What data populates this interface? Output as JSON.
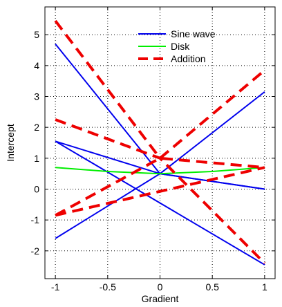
{
  "chart_data": {
    "type": "line",
    "title": "",
    "xlabel": "Gradient",
    "ylabel": "Intercept",
    "xlim": [
      -1.1,
      1.1
    ],
    "ylim": [
      -2.9,
      5.9
    ],
    "xticks": [
      -1,
      -0.5,
      0,
      0.5,
      1
    ],
    "xtick_labels": [
      "-1",
      "-0.5",
      "0",
      "0.5",
      "1"
    ],
    "yticks": [
      -2,
      -1,
      0,
      1,
      2,
      3,
      4,
      5
    ],
    "ytick_labels": [
      "-2",
      "-1",
      "0",
      "1",
      "2",
      "3",
      "4",
      "5"
    ],
    "grid": true,
    "legend_position": "top-right",
    "series": [
      {
        "name": "Sine wave",
        "color": "#0000ee",
        "style": "solid",
        "lines": [
          {
            "x": [
              -1,
              0,
              1
            ],
            "y": [
              4.7,
              0.5,
              3.15
            ]
          },
          {
            "x": [
              -1,
              0,
              1
            ],
            "y": [
              1.55,
              0.5,
              0.0
            ]
          },
          {
            "x": [
              -1,
              0,
              1
            ],
            "y": [
              -1.6,
              0.5,
              0.0
            ]
          },
          {
            "x": [
              -1,
              1
            ],
            "y": [
              1.55,
              -2.45
            ]
          }
        ]
      },
      {
        "name": "Disk",
        "color": "#00ee00",
        "style": "solid",
        "lines": [
          {
            "x": [
              -1,
              -0.5,
              0,
              0.5,
              1
            ],
            "y": [
              0.7,
              0.57,
              0.5,
              0.57,
              0.7
            ]
          }
        ]
      },
      {
        "name": "Addition",
        "color": "#ee0000",
        "style": "dashed",
        "lines": [
          {
            "x": [
              -1,
              0,
              1
            ],
            "y": [
              5.45,
              1.0,
              3.85
            ]
          },
          {
            "x": [
              -1,
              0,
              1
            ],
            "y": [
              2.25,
              1.0,
              -2.4
            ]
          },
          {
            "x": [
              -1,
              0,
              1
            ],
            "y": [
              -0.85,
              1.0,
              0.7
            ]
          },
          {
            "x": [
              -1,
              1
            ],
            "y": [
              -0.85,
              0.7
            ]
          }
        ]
      }
    ]
  }
}
